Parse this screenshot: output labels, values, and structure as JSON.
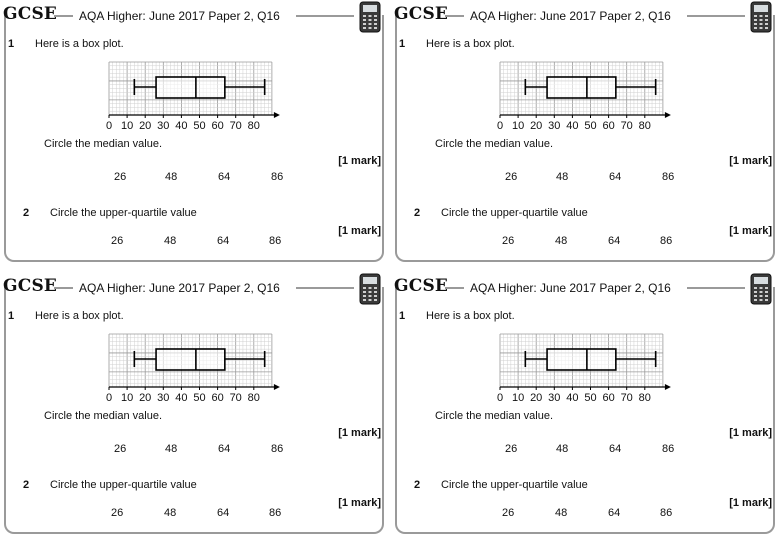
{
  "card": {
    "logo": "GCSE",
    "header_title": "AQA Higher: June 2017 Paper 2, Q16",
    "calculator_icon": "calculator-icon",
    "q1": {
      "number": "1",
      "intro": "Here is a box plot.",
      "prompt": "Circle the median value.",
      "mark": "[1 mark]",
      "options": [
        "26",
        "48",
        "64",
        "86"
      ]
    },
    "q2": {
      "number": "2",
      "prompt": "Circle the upper-quartile value",
      "mark": "[1 mark]",
      "options": [
        "26",
        "48",
        "64",
        "86"
      ]
    }
  },
  "chart_data": {
    "type": "box",
    "xlim": [
      0,
      90
    ],
    "tick_labels": [
      "0",
      "10",
      "20",
      "30",
      "40",
      "50",
      "60",
      "70",
      "80"
    ],
    "ticks": [
      0,
      10,
      20,
      30,
      40,
      50,
      60,
      70,
      80
    ],
    "min": 14,
    "q1": 26,
    "median": 48,
    "q3": 64,
    "max": 86,
    "grid": true
  }
}
